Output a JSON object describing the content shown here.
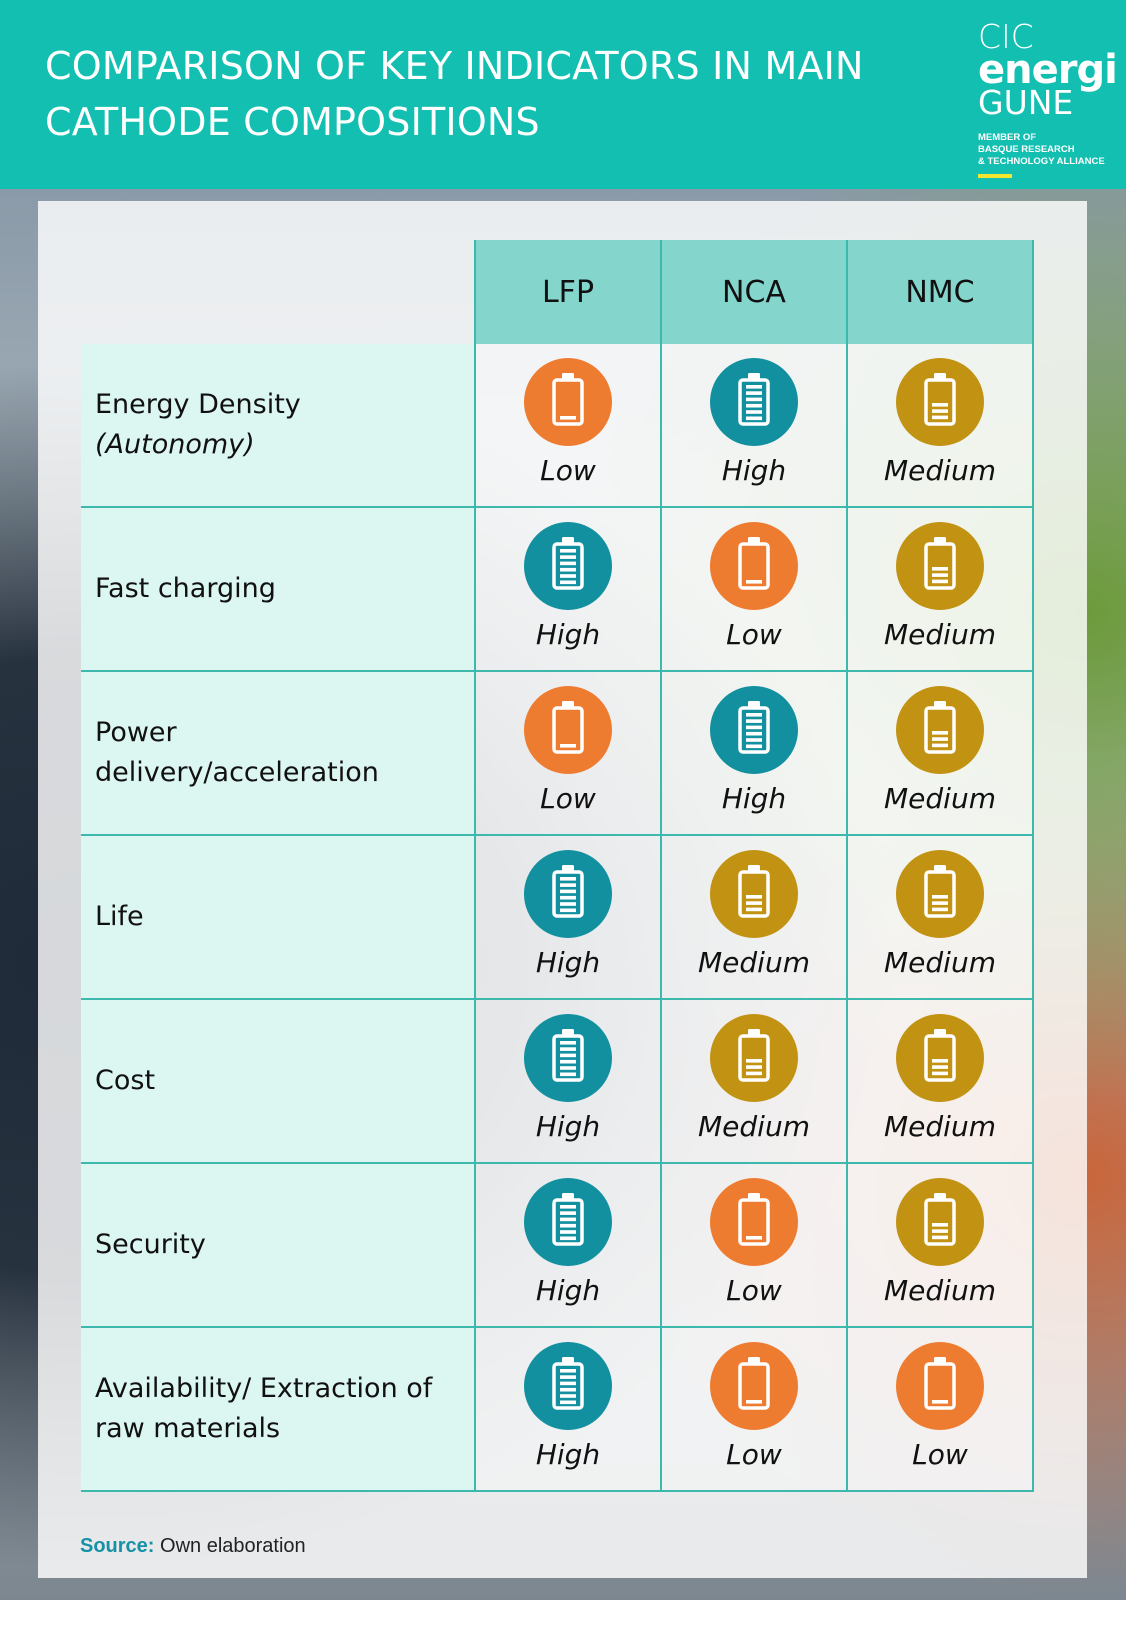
{
  "header": {
    "title": "COMPARISON OF KEY INDICATORS IN MAIN\nCATHODE COMPOSITIONS",
    "bg_color": "#12bfb0"
  },
  "logo": {
    "line1": "CIC",
    "line2": "energi",
    "line3": "GUNE",
    "member": "MEMBER OF\nBASQUE RESEARCH\n& TECHNOLOGY ALLIANCE"
  },
  "columns": [
    "LFP",
    "NCA",
    "NMC"
  ],
  "level_colors": {
    "High": "#13909f",
    "Low": "#ee7c30",
    "Medium": "#c29213"
  },
  "rows": [
    {
      "label": "Energy Density ",
      "label_italic": "(Autonomy)",
      "values": [
        "Low",
        "High",
        "Medium"
      ]
    },
    {
      "label": "Fast charging",
      "label_italic": "",
      "values": [
        "High",
        "Low",
        "Medium"
      ]
    },
    {
      "label": "Power delivery/acceleration",
      "label_italic": "",
      "values": [
        "Low",
        "High",
        "Medium"
      ]
    },
    {
      "label": "Life",
      "label_italic": "",
      "values": [
        "High",
        "Medium",
        "Medium"
      ]
    },
    {
      "label": "Cost",
      "label_italic": "",
      "values": [
        "High",
        "Medium",
        "Medium"
      ]
    },
    {
      "label": "Security",
      "label_italic": "",
      "values": [
        "High",
        "Low",
        "Medium"
      ]
    },
    {
      "label": "Availability/ Extraction of raw materials",
      "label_italic": "",
      "values": [
        "High",
        "Low",
        "Low"
      ]
    }
  ],
  "source": {
    "label": "Source:",
    "text": " Own elaboration"
  }
}
